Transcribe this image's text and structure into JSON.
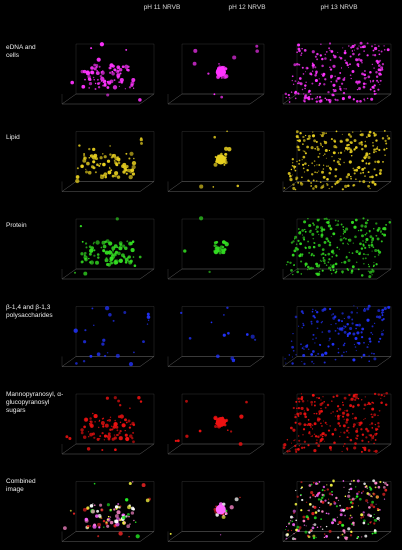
{
  "columns": [
    "pH 11 NRVB",
    "pH 12 NRVB",
    "pH 13 NRVB"
  ],
  "rows": [
    "eDNA and cells",
    "Lipid",
    "Protein",
    "β-1,4 and β-1,3 polysaccharides",
    "Mannopyranosyl, α-glucopyranosyl sugars",
    "Combined image"
  ]
}
